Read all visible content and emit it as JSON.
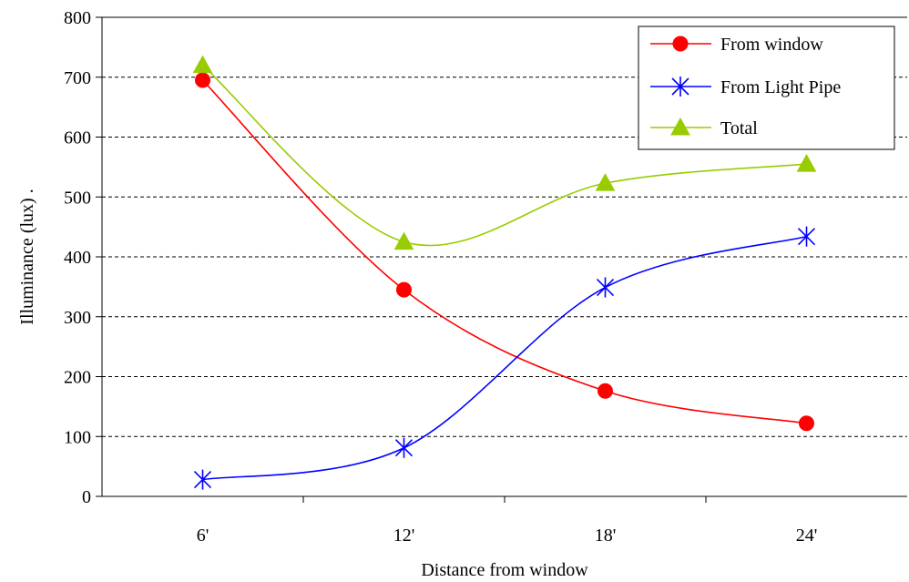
{
  "chart_data": {
    "type": "line",
    "title": "",
    "xlabel": "Distance from window",
    "ylabel": "Illuminance (lux)   .",
    "categories": [
      "6'",
      "12'",
      "18'",
      "24'"
    ],
    "ylim": [
      0,
      800
    ],
    "yticks": [
      0,
      100,
      200,
      300,
      400,
      500,
      600,
      700,
      800
    ],
    "grid": "horizontal dashed",
    "legend_position": "top-right",
    "smooth": true,
    "series": [
      {
        "name": "From window",
        "values": [
          695,
          345,
          176,
          122
        ],
        "color": "#ff0000",
        "marker": "circle"
      },
      {
        "name": "From Light Pipe",
        "values": [
          28,
          81,
          349,
          434
        ],
        "color": "#0000ff",
        "marker": "asterisk"
      },
      {
        "name": "Total",
        "values": [
          720,
          425,
          523,
          555
        ],
        "color": "#99cc00",
        "marker": "triangle"
      }
    ]
  }
}
